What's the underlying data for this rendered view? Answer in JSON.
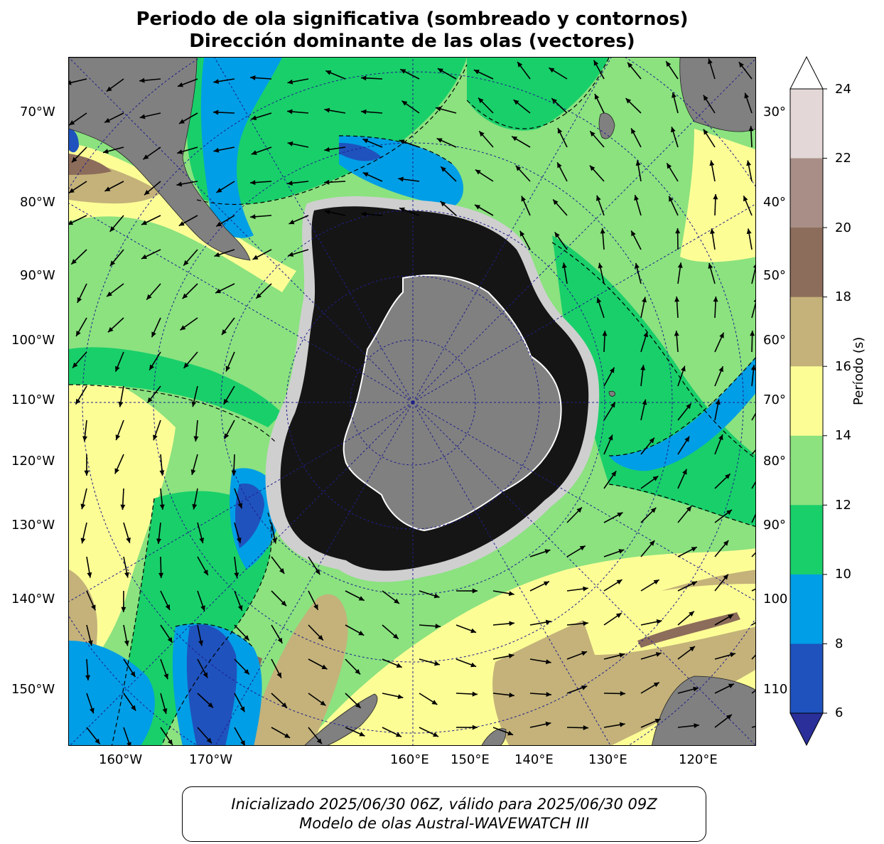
{
  "title": {
    "line1": "Periodo de ola significativa (sombreado y contornos)",
    "line2": "Dirección dominante de las olas (vectores)"
  },
  "map": {
    "projection": "south-polar-stereographic",
    "left_lat_labels": [
      "70°W",
      "80°W",
      "90°W",
      "100°W",
      "110°W",
      "120°W",
      "130°W",
      "140°W",
      "150°W"
    ],
    "right_lat_labels": [
      "30°",
      "40°",
      "50°",
      "60°",
      "70°",
      "80°",
      "90°",
      "100",
      "110"
    ],
    "bottom_lon_labels": [
      "160°W",
      "170°W",
      "160°E",
      "150°E",
      "140°E",
      "130°E",
      "120°E"
    ],
    "colors": {
      "land": "#808080",
      "sea_ice_dark": "#151515",
      "grid": "#1e1e8c",
      "p6_8": "#1f52bd",
      "p8_10": "#009ee6",
      "p10_12": "#19cf6a",
      "p12_14": "#8be27f",
      "p14_16": "#fdfd96",
      "p16_18": "#c4b27a",
      "p18_20": "#8c6c5a",
      "p20_22": "#a88e86",
      "p22_24": "#e3d8d7"
    }
  },
  "colorbar": {
    "label": "Período (s)",
    "ticks": [
      "24",
      "22",
      "20",
      "18",
      "16",
      "14",
      "12",
      "10",
      "8",
      "6"
    ],
    "colors": [
      "#e3d8d7",
      "#a88e86",
      "#8c6c5a",
      "#c4b27a",
      "#fdfd96",
      "#8be27f",
      "#19cf6a",
      "#009ee6",
      "#1f52bd"
    ],
    "under_color": "#2a2f9a",
    "over_color": "#ffffff"
  },
  "footer": {
    "line1": "Inicializado 2025/06/30 06Z, válido para 2025/06/30 09Z",
    "line2": "Modelo de olas Austral-WAVEWATCH III"
  }
}
